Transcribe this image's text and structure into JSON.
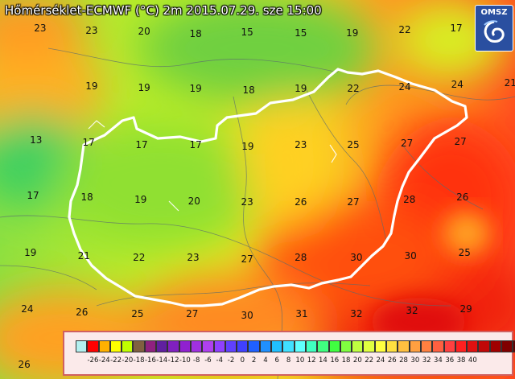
{
  "map": {
    "title": "Hőmérséklet-ECMWF (°C) 2m 2015.07.29. sze 15:00",
    "logo_text": "OMSZ",
    "logo_icon": "omsz-swirl-logo",
    "values": [
      {
        "v": "23",
        "x": 0.078,
        "y": 0.074
      },
      {
        "v": "23",
        "x": 0.178,
        "y": 0.081
      },
      {
        "v": "20",
        "x": 0.28,
        "y": 0.083
      },
      {
        "v": "18",
        "x": 0.38,
        "y": 0.089
      },
      {
        "v": "15",
        "x": 0.48,
        "y": 0.085
      },
      {
        "v": "15",
        "x": 0.584,
        "y": 0.087
      },
      {
        "v": "19",
        "x": 0.684,
        "y": 0.087
      },
      {
        "v": "22",
        "x": 0.786,
        "y": 0.078
      },
      {
        "v": "17",
        "x": 0.886,
        "y": 0.074
      },
      {
        "v": "19",
        "x": 0.178,
        "y": 0.227
      },
      {
        "v": "19",
        "x": 0.28,
        "y": 0.231
      },
      {
        "v": "19",
        "x": 0.38,
        "y": 0.233
      },
      {
        "v": "18",
        "x": 0.483,
        "y": 0.237
      },
      {
        "v": "19",
        "x": 0.584,
        "y": 0.233
      },
      {
        "v": "22",
        "x": 0.686,
        "y": 0.233
      },
      {
        "v": "24",
        "x": 0.786,
        "y": 0.229
      },
      {
        "v": "24",
        "x": 0.888,
        "y": 0.223
      },
      {
        "v": "21",
        "x": 0.991,
        "y": 0.218
      },
      {
        "v": "13",
        "x": 0.07,
        "y": 0.369
      },
      {
        "v": "17",
        "x": 0.172,
        "y": 0.376
      },
      {
        "v": "17",
        "x": 0.275,
        "y": 0.382
      },
      {
        "v": "17",
        "x": 0.38,
        "y": 0.382
      },
      {
        "v": "19",
        "x": 0.481,
        "y": 0.386
      },
      {
        "v": "23",
        "x": 0.584,
        "y": 0.382
      },
      {
        "v": "25",
        "x": 0.686,
        "y": 0.382
      },
      {
        "v": "27",
        "x": 0.79,
        "y": 0.378
      },
      {
        "v": "27",
        "x": 0.894,
        "y": 0.374
      },
      {
        "v": "17",
        "x": 0.064,
        "y": 0.516
      },
      {
        "v": "18",
        "x": 0.169,
        "y": 0.52
      },
      {
        "v": "19",
        "x": 0.273,
        "y": 0.527
      },
      {
        "v": "20",
        "x": 0.377,
        "y": 0.531
      },
      {
        "v": "23",
        "x": 0.48,
        "y": 0.533
      },
      {
        "v": "26",
        "x": 0.584,
        "y": 0.533
      },
      {
        "v": "27",
        "x": 0.686,
        "y": 0.533
      },
      {
        "v": "28",
        "x": 0.795,
        "y": 0.527
      },
      {
        "v": "26",
        "x": 0.898,
        "y": 0.52
      },
      {
        "v": "19",
        "x": 0.059,
        "y": 0.667
      },
      {
        "v": "21",
        "x": 0.163,
        "y": 0.676
      },
      {
        "v": "22",
        "x": 0.27,
        "y": 0.68
      },
      {
        "v": "23",
        "x": 0.375,
        "y": 0.68
      },
      {
        "v": "27",
        "x": 0.48,
        "y": 0.684
      },
      {
        "v": "28",
        "x": 0.584,
        "y": 0.68
      },
      {
        "v": "30",
        "x": 0.692,
        "y": 0.68
      },
      {
        "v": "30",
        "x": 0.797,
        "y": 0.676
      },
      {
        "v": "25",
        "x": 0.902,
        "y": 0.667
      },
      {
        "v": "24",
        "x": 0.053,
        "y": 0.816
      },
      {
        "v": "26",
        "x": 0.159,
        "y": 0.824
      },
      {
        "v": "25",
        "x": 0.267,
        "y": 0.829
      },
      {
        "v": "27",
        "x": 0.373,
        "y": 0.829
      },
      {
        "v": "30",
        "x": 0.48,
        "y": 0.833
      },
      {
        "v": "31",
        "x": 0.586,
        "y": 0.829
      },
      {
        "v": "32",
        "x": 0.692,
        "y": 0.829
      },
      {
        "v": "32",
        "x": 0.8,
        "y": 0.82
      },
      {
        "v": "29",
        "x": 0.905,
        "y": 0.816
      },
      {
        "v": "26",
        "x": 0.047,
        "y": 0.962
      }
    ]
  },
  "legend": {
    "colors": [
      "#b4f0f0",
      "#ff0000",
      "#ffb000",
      "#ffff00",
      "#c0ff00",
      "#806040",
      "#902080",
      "#6020a0",
      "#8020c0",
      "#9020d0",
      "#a030e0",
      "#b040f0",
      "#9040ff",
      "#6040ff",
      "#4040ff",
      "#2060ff",
      "#2090ff",
      "#20c0ff",
      "#40e0ff",
      "#60ffff",
      "#40ffc0",
      "#40ff80",
      "#40ff40",
      "#80ff40",
      "#c0ff40",
      "#e0ff40",
      "#ffff40",
      "#ffe040",
      "#ffc040",
      "#ffa040",
      "#ff8040",
      "#ff6040",
      "#ff4040",
      "#ff2020",
      "#e01010",
      "#c00808",
      "#a00000",
      "#800000",
      "#600000"
    ],
    "labels": [
      "-26",
      "-24",
      "-22",
      "-20",
      "-18",
      "-16",
      "-14",
      "-12",
      "-10",
      "-8",
      "-6",
      "-4",
      "-2",
      "0",
      "2",
      "4",
      "6",
      "8",
      "10",
      "12",
      "14",
      "16",
      "18",
      "20",
      "22",
      "24",
      "26",
      "28",
      "30",
      "32",
      "34",
      "36",
      "38",
      "40"
    ]
  }
}
